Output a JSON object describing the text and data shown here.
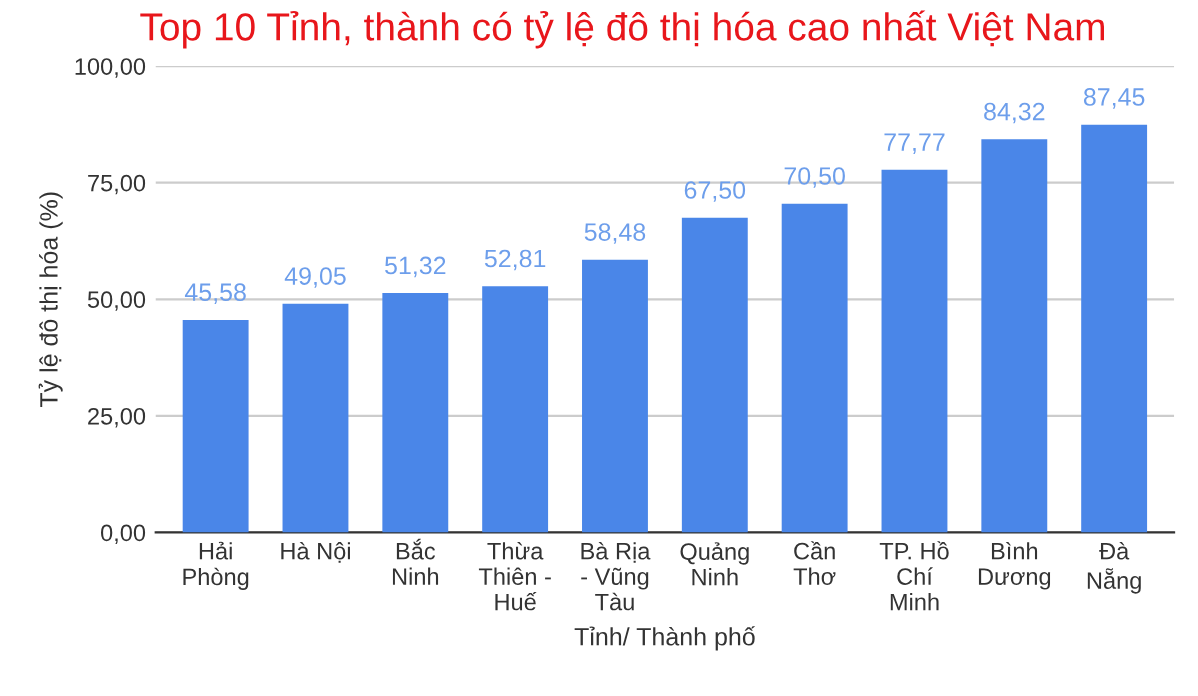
{
  "chart_data": {
    "type": "bar",
    "title": "Top 10 Tỉnh, thành có tỷ lệ đô thị hóa cao nhất Việt Nam",
    "xlabel": "Tỉnh/ Thành phố",
    "ylabel": "Tỷ lệ đô thị hóa (%)",
    "categories": [
      "Hải\nPhòng",
      "Hà Nội",
      "Bắc\nNinh",
      "Thừa\nThiên -\nHuế",
      "Bà Rịa\n- Vũng\nTàu",
      "Quảng\nNinh",
      "Cần\nThơ",
      "TP. Hồ\nChí\nMinh",
      "Bình\nDương",
      "Đà\nNẵng"
    ],
    "values": [
      45.58,
      49.05,
      51.32,
      52.81,
      58.48,
      67.5,
      70.5,
      77.77,
      84.32,
      87.45
    ],
    "value_labels": [
      "45,58",
      "49,05",
      "51,32",
      "52,81",
      "58,48",
      "67,50",
      "70,50",
      "77,77",
      "84,32",
      "87,45"
    ],
    "color": "#4a86e8",
    "ylim": [
      0,
      100
    ],
    "yticks": [
      {
        "value": 0,
        "label": "0,00"
      },
      {
        "value": 25,
        "label": "25,00"
      },
      {
        "value": 50,
        "label": "50,00"
      },
      {
        "value": 75,
        "label": "75,00"
      },
      {
        "value": 100,
        "label": "100,00"
      }
    ],
    "grid": "y"
  }
}
